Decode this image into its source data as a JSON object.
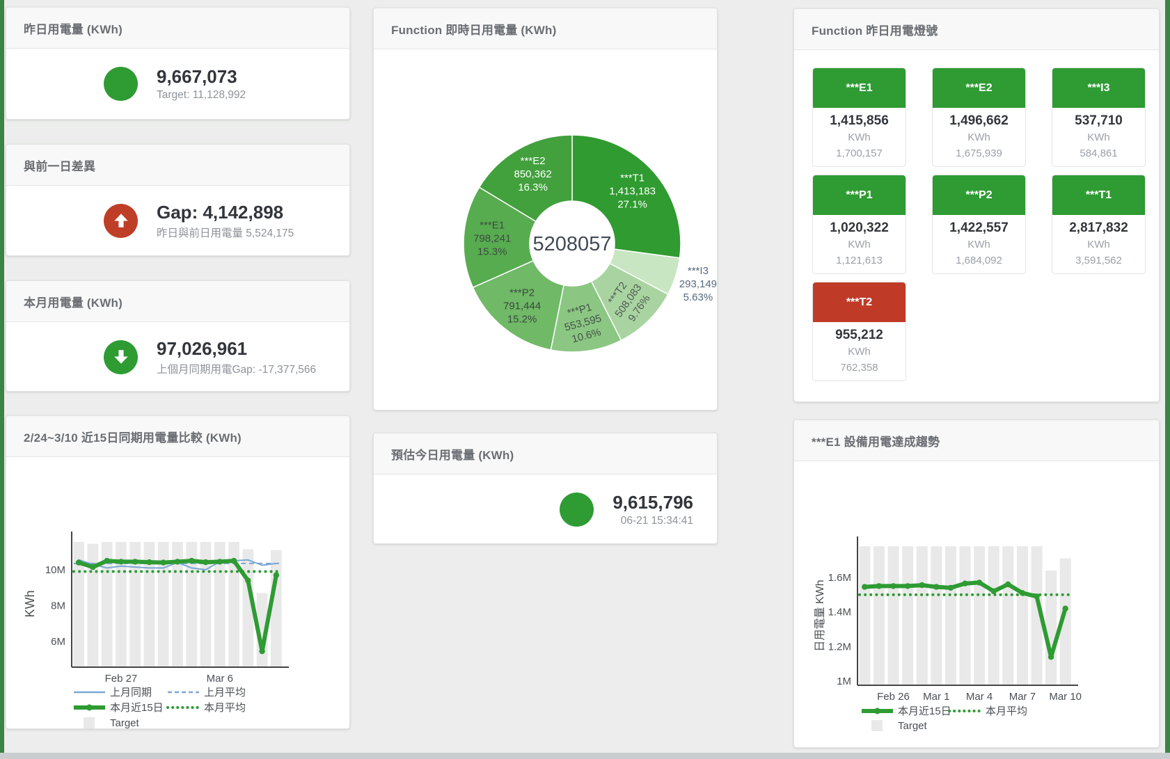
{
  "page": {
    "background": "#ecedec",
    "edge_color": "#3a8545",
    "scrollbar_color": "#c9cdd0"
  },
  "colors": {
    "green": "#2e9b33",
    "red": "#bf3e28",
    "bar_gray": "#e9e9e9",
    "blue": "#7aa7d4",
    "axis": "#444444",
    "tick_text": "#4a4f54",
    "header_text": "#6a6e73"
  },
  "cards": {
    "yesterday": {
      "title": "昨日用電量 (KWh)",
      "value": "9,667,073",
      "subtitle": "Target: 11,128,992",
      "indicator": "circle",
      "indicator_color": "#2e9b33"
    },
    "diff": {
      "title": "與前一日差異",
      "value": "Gap: 4,142,898",
      "subtitle": "昨日與前日用電量 5,524,175",
      "indicator": "arrow-up",
      "indicator_color": "#bf3e28"
    },
    "month": {
      "title": "本月用電量 (KWh)",
      "value": "97,026,961",
      "subtitle": "上個月同期用電Gap: -17,377,566",
      "indicator": "arrow-down",
      "indicator_color": "#2e9b33"
    },
    "estimate": {
      "title": "預估今日用電量 (KWh)",
      "value": "9,615,796",
      "subtitle": "06-21 15:34:41",
      "indicator": "circle",
      "indicator_color": "#2e9b33"
    },
    "donut": {
      "title": "Function 即時日用電量 (KWh)"
    },
    "lights": {
      "title": "Function 昨日用電燈號",
      "unit": "KWh",
      "tiles": [
        {
          "label": "***E1",
          "value": "1,415,856",
          "target": "1,700,157",
          "status": "green"
        },
        {
          "label": "***E2",
          "value": "1,496,662",
          "target": "1,675,939",
          "status": "green"
        },
        {
          "label": "***I3",
          "value": "537,710",
          "target": "584,861",
          "status": "green"
        },
        {
          "label": "***P1",
          "value": "1,020,322",
          "target": "1,121,613",
          "status": "green"
        },
        {
          "label": "***P2",
          "value": "1,422,557",
          "target": "1,684,092",
          "status": "green"
        },
        {
          "label": "***T1",
          "value": "2,817,832",
          "target": "3,591,562",
          "status": "green"
        },
        {
          "label": "***T2",
          "value": "955,212",
          "target": "762,358",
          "status": "red"
        }
      ],
      "status_colors": {
        "green": "#2e9b33",
        "red": "#bf3b27"
      }
    },
    "compare": {
      "title": "2/24~3/10 近15日同期用電量比較 (KWh)"
    },
    "trend": {
      "title": "***E1 設備用電達成趨勢"
    }
  },
  "chart_data": [
    {
      "type": "pie",
      "title": "Function 即時日用電量 (KWh)",
      "center_total": "5208057",
      "legend_position": "none",
      "slices": [
        {
          "label": "***T1",
          "value": 1413183,
          "display_value": "1,413,183",
          "pct": 27.1,
          "pct_label": "27.1%",
          "color": "#2f9b30",
          "label_color": "#ffffff",
          "label_pos": "inside",
          "rotate": 0
        },
        {
          "label": "***I3",
          "value": 293149,
          "display_value": "293,149",
          "pct": 5.63,
          "pct_label": "5.63%",
          "color": "#c9e6c3",
          "label_color": "#55687d",
          "label_pos": "outside",
          "rotate": 0
        },
        {
          "label": "***T2",
          "value": 508083,
          "display_value": "508,083",
          "pct": 9.76,
          "pct_label": "9.76%",
          "color": "#a9d4a1",
          "label_color": "#4e5a52",
          "label_pos": "inside",
          "rotate": -55
        },
        {
          "label": "***P1",
          "value": 553595,
          "display_value": "553,595",
          "pct": 10.6,
          "pct_label": "10.6%",
          "color": "#8bc783",
          "label_color": "#44504a",
          "label_pos": "inside",
          "rotate": -15
        },
        {
          "label": "***P2",
          "value": 791444,
          "display_value": "791,444",
          "pct": 15.2,
          "pct_label": "15.2%",
          "color": "#6fb967",
          "label_color": "#3c463f",
          "label_pos": "inside",
          "rotate": 0
        },
        {
          "label": "***E1",
          "value": 798241,
          "display_value": "798,241",
          "pct": 15.3,
          "pct_label": "15.3%",
          "color": "#57ac50",
          "label_color": "#3f4a42",
          "label_pos": "inside",
          "rotate": 0
        },
        {
          "label": "***E2",
          "value": 850362,
          "display_value": "850,362",
          "pct": 16.3,
          "pct_label": "16.3%",
          "color": "#42a03d",
          "label_color": "#ffffff",
          "label_pos": "inside",
          "rotate": 0
        }
      ]
    },
    {
      "type": "line",
      "title": "2/24~3/10 近15日同期用電量比較 (KWh)",
      "ylabel": "KWh",
      "grid": false,
      "x": [
        "Feb 24",
        "Feb 25",
        "Feb 26",
        "Feb 27",
        "Feb 28",
        "Mar 1",
        "Mar 2",
        "Mar 3",
        "Mar 4",
        "Mar 5",
        "Mar 6",
        "Mar 7",
        "Mar 8",
        "Mar 9",
        "Mar 10"
      ],
      "xticks": [
        {
          "index": 3,
          "label": "Feb 27"
        },
        {
          "index": 10,
          "label": "Mar 6"
        }
      ],
      "yticks": [
        {
          "value": 6000000,
          "label": "6M"
        },
        {
          "value": 8000000,
          "label": "8M"
        },
        {
          "value": 10000000,
          "label": "10M"
        }
      ],
      "ylim": [
        4560000,
        11590000
      ],
      "series": [
        {
          "name": "Target",
          "kind": "bar",
          "color": "#e9e9e9",
          "values": [
            11550000,
            11450000,
            11550000,
            11550000,
            11550000,
            11550000,
            11550000,
            11550000,
            11550000,
            11550000,
            11550000,
            11550000,
            11150000,
            8700000,
            11100000
          ]
        },
        {
          "name": "上月平均",
          "kind": "hline-dash",
          "color": "#7aa7d4",
          "width": 2,
          "value": 10350000
        },
        {
          "name": "本月平均",
          "kind": "hline-dot",
          "color": "#2e9b33",
          "width": 4,
          "value": 9900000
        },
        {
          "name": "上月同期",
          "kind": "line",
          "color": "#7aa7d4",
          "width": 2,
          "markers": false,
          "values": [
            10550000,
            10300000,
            10100000,
            10200000,
            10150000,
            10100000,
            10100000,
            10400000,
            10100000,
            10000000,
            10450000,
            10500000,
            10550000,
            10250000,
            10350000
          ]
        },
        {
          "name": "本月近15日",
          "kind": "line",
          "color": "#2e9b33",
          "width": 6,
          "markers": true,
          "values": [
            10400000,
            10150000,
            10500000,
            10450000,
            10450000,
            10420000,
            10400000,
            10450000,
            10500000,
            10420000,
            10450000,
            10500000,
            9400000,
            5450000,
            9700000
          ]
        }
      ],
      "legend": [
        [
          {
            "swatch": "line",
            "color": "#7aa7d4",
            "label": "上月同期"
          },
          {
            "swatch": "dash",
            "color": "#7aa7d4",
            "label": "上月平均"
          }
        ],
        [
          {
            "swatch": "thick",
            "color": "#2e9b33",
            "label": "本月近15日"
          },
          {
            "swatch": "dot",
            "color": "#2e9b33",
            "label": "本月平均"
          }
        ],
        [
          {
            "swatch": "rect",
            "color": "#e9e9e9",
            "label": "Target"
          }
        ]
      ]
    },
    {
      "type": "line",
      "title": "***E1 設備用電達成趨勢",
      "ylabel": "日用電量 KWh",
      "grid": false,
      "x": [
        "Feb 24",
        "Feb 25",
        "Feb 26",
        "Feb 27",
        "Feb 28",
        "Mar 1",
        "Mar 2",
        "Mar 3",
        "Mar 4",
        "Mar 5",
        "Mar 6",
        "Mar 7",
        "Mar 8",
        "Mar 9",
        "Mar 10"
      ],
      "xticks": [
        {
          "index": 2,
          "label": "Feb 26"
        },
        {
          "index": 5,
          "label": "Mar 1"
        },
        {
          "index": 8,
          "label": "Mar 4"
        },
        {
          "index": 11,
          "label": "Mar 7"
        },
        {
          "index": 14,
          "label": "Mar 10"
        }
      ],
      "yticks": [
        {
          "value": 1000000,
          "label": "1M"
        },
        {
          "value": 1200000,
          "label": "1.2M"
        },
        {
          "value": 1400000,
          "label": "1.4M"
        },
        {
          "value": 1600000,
          "label": "1.6M"
        }
      ],
      "ylim": [
        976000,
        1781000
      ],
      "series": [
        {
          "name": "Target",
          "kind": "bar",
          "color": "#e9e9e9",
          "values": [
            1780000,
            1780000,
            1780000,
            1780000,
            1780000,
            1780000,
            1780000,
            1780000,
            1780000,
            1780000,
            1780000,
            1780000,
            1780000,
            1640000,
            1710000
          ]
        },
        {
          "name": "本月平均",
          "kind": "hline-dot",
          "color": "#2e9b33",
          "width": 4,
          "value": 1500000
        },
        {
          "name": "本月近15日",
          "kind": "line",
          "color": "#2e9b33",
          "width": 6,
          "markers": true,
          "values": [
            1545000,
            1550000,
            1550000,
            1550000,
            1555000,
            1545000,
            1540000,
            1565000,
            1570000,
            1520000,
            1560000,
            1510000,
            1490000,
            1140000,
            1420000
          ]
        }
      ],
      "legend": [
        [
          {
            "swatch": "thick",
            "color": "#2e9b33",
            "label": "本月近15日"
          },
          {
            "swatch": "dot",
            "color": "#2e9b33",
            "label": "本月平均"
          }
        ],
        [
          {
            "swatch": "rect",
            "color": "#e9e9e9",
            "label": "Target"
          }
        ]
      ]
    }
  ]
}
